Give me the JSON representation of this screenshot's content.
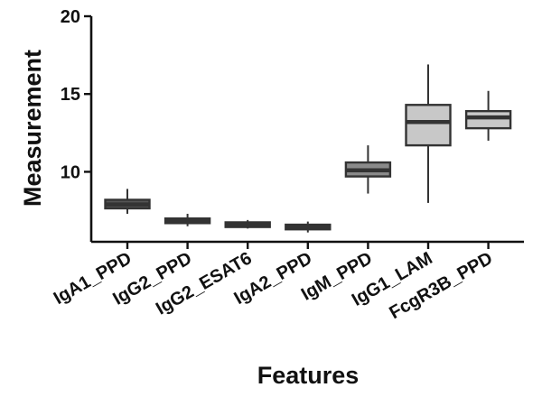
{
  "chart_data": {
    "type": "box",
    "title": "",
    "xlabel": "Features",
    "ylabel": "Measurement",
    "ylim": [
      5.5,
      20
    ],
    "yticks": [
      "10",
      "15",
      "20"
    ],
    "ytick_values": [
      10,
      15,
      20
    ],
    "grid": false,
    "legend": "none",
    "categories": [
      "IgA1_PPD",
      "IgG2_PPD",
      "IgG2_ESAT6",
      "IgA2_PPD",
      "IgM_PPD",
      "IgG1_LAM",
      "FcgR3B_PPD"
    ],
    "boxes": [
      {
        "category": "IgA1_PPD",
        "min": 7.3,
        "q1": 7.65,
        "median": 7.9,
        "q3": 8.2,
        "max": 8.9,
        "fill": "#555555"
      },
      {
        "category": "IgG2_PPD",
        "min": 6.5,
        "q1": 6.7,
        "median": 6.85,
        "q3": 7.0,
        "max": 7.3,
        "fill": "#555555"
      },
      {
        "category": "IgG2_ESAT6",
        "min": 6.35,
        "q1": 6.45,
        "median": 6.6,
        "q3": 6.75,
        "max": 6.9,
        "fill": "#555555"
      },
      {
        "category": "IgA2_PPD",
        "min": 6.1,
        "q1": 6.3,
        "median": 6.45,
        "q3": 6.6,
        "max": 6.8,
        "fill": "#555555"
      },
      {
        "category": "IgM_PPD",
        "min": 8.6,
        "q1": 9.7,
        "median": 10.1,
        "q3": 10.6,
        "max": 11.7,
        "fill": "#8a8a8a"
      },
      {
        "category": "IgG1_LAM",
        "min": 8.0,
        "q1": 11.7,
        "median": 13.2,
        "q3": 14.3,
        "max": 16.9,
        "fill": "#c8c8c8"
      },
      {
        "category": "FcgR3B_PPD",
        "min": 12.0,
        "q1": 12.8,
        "median": 13.5,
        "q3": 13.9,
        "max": 15.2,
        "fill": "#c8c8c8"
      }
    ],
    "colors": {
      "axis": "#111111",
      "box_stroke": "#333333"
    }
  }
}
